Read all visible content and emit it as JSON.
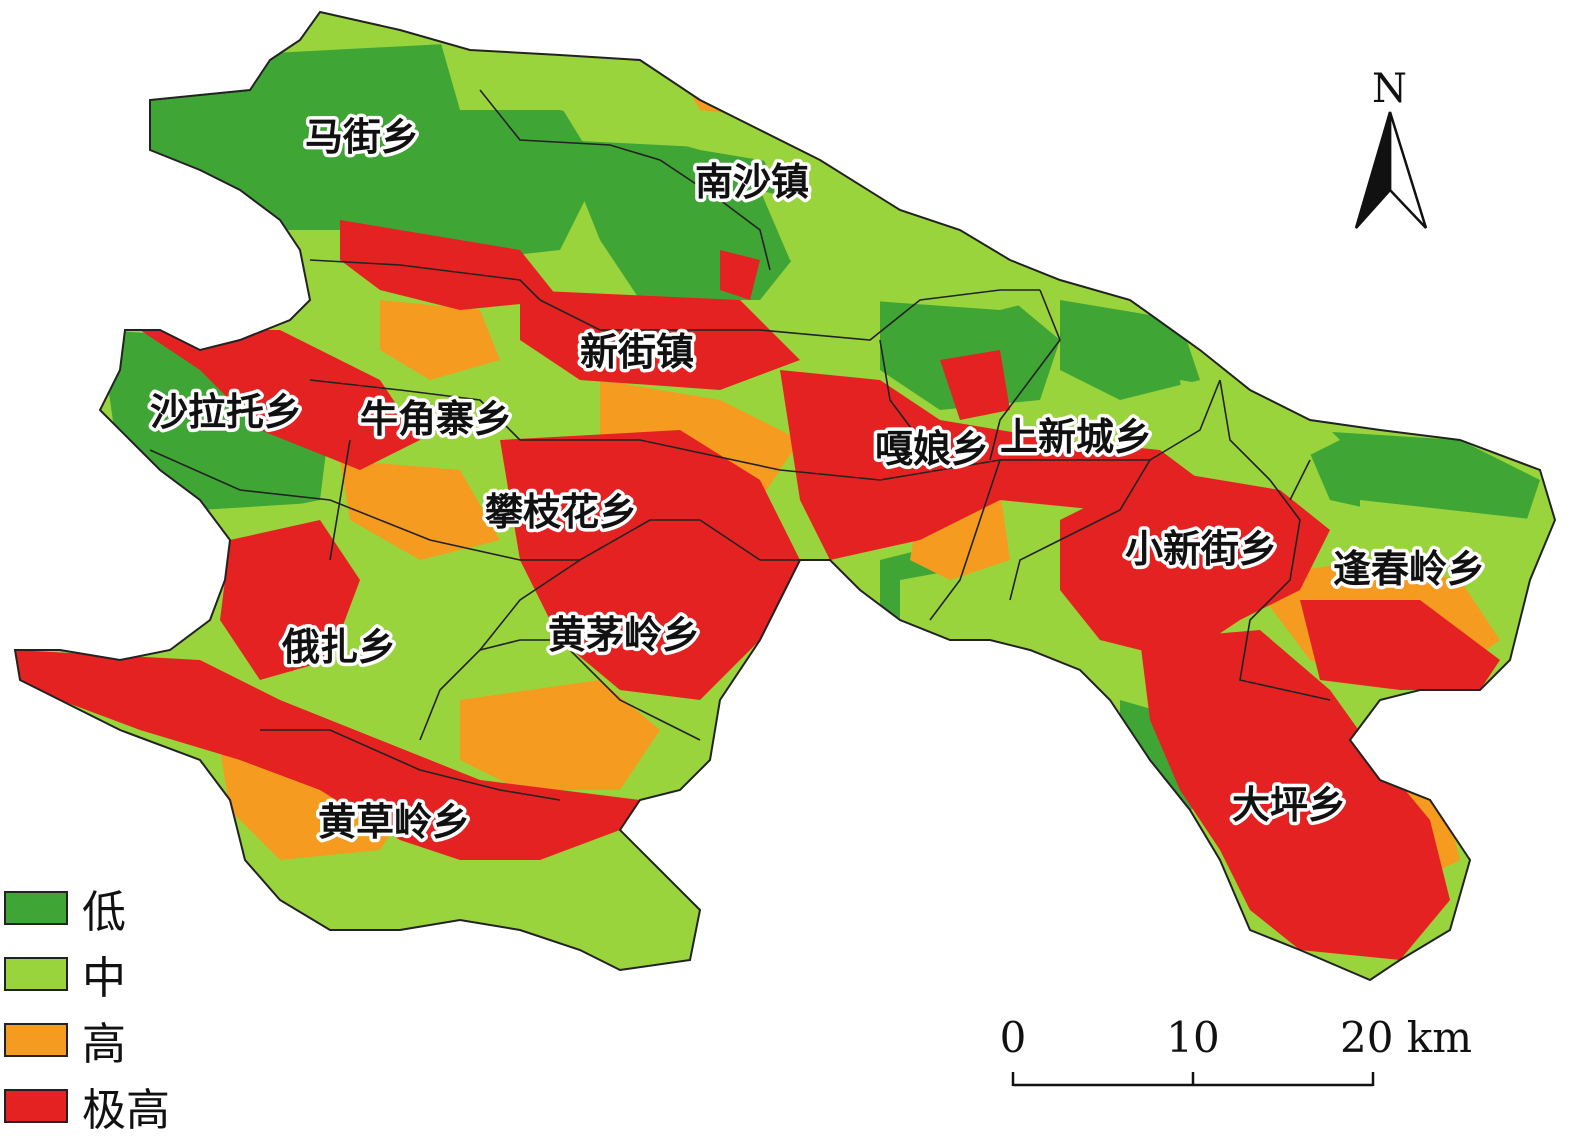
{
  "colors": {
    "low": "#3fa535",
    "medium": "#9ad43c",
    "high": "#f59b1f",
    "very_high": "#e52222",
    "boundary": "#222222"
  },
  "regions": [
    {
      "id": "majie",
      "label": "马街乡"
    },
    {
      "id": "nansha",
      "label": "南沙镇"
    },
    {
      "id": "xinjie",
      "label": "新街镇"
    },
    {
      "id": "shalatuo",
      "label": "沙拉托乡"
    },
    {
      "id": "niujiaozhai",
      "label": "牛角寨乡"
    },
    {
      "id": "panzhihua",
      "label": "攀枝花乡"
    },
    {
      "id": "galiang",
      "label": "嘎娘乡"
    },
    {
      "id": "shangxincheng",
      "label": "上新城乡"
    },
    {
      "id": "xiaoxinjie",
      "label": "小新街乡"
    },
    {
      "id": "fengchunling",
      "label": "逢春岭乡"
    },
    {
      "id": "ezha",
      "label": "俄扎乡"
    },
    {
      "id": "huangmaoling",
      "label": "黄茅岭乡"
    },
    {
      "id": "dapingxiang",
      "label": "大坪乡"
    },
    {
      "id": "huangcaoling",
      "label": "黄草岭乡"
    }
  ],
  "legend": {
    "items": [
      {
        "label": "低",
        "color": "#3fa535"
      },
      {
        "label": "中",
        "color": "#9ad43c"
      },
      {
        "label": "高",
        "color": "#f59b1f"
      },
      {
        "label": "极高",
        "color": "#e52222"
      }
    ]
  },
  "scale_bar": {
    "ticks": [
      "0",
      "10",
      "20 km"
    ]
  },
  "north_arrow": {
    "letter": "N",
    "icon": "north-arrow-icon"
  }
}
